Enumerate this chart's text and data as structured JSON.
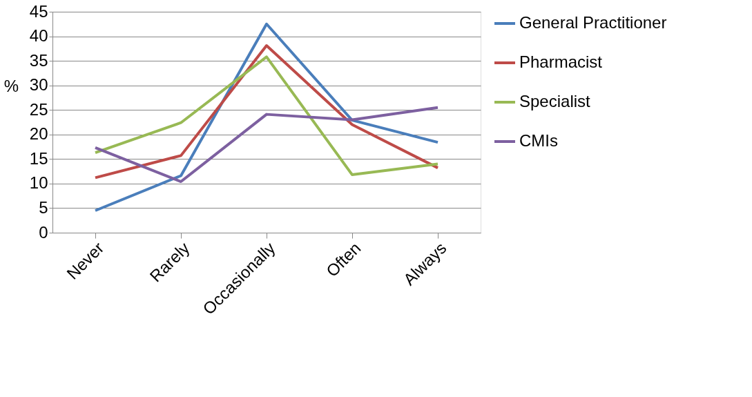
{
  "chart_data": {
    "type": "line",
    "ylabel": "%",
    "categories": [
      "Never",
      "Rarely",
      "Occasionally",
      "Often",
      "Always"
    ],
    "series": [
      {
        "name": "General Practitioner",
        "color": "#4a7ebb",
        "values": [
          4.5,
          11.6,
          42.5,
          22.9,
          18.4
        ]
      },
      {
        "name": "Pharmacist",
        "color": "#be4b48",
        "values": [
          11.2,
          15.7,
          38.1,
          22.0,
          13.2
        ]
      },
      {
        "name": "Specialist",
        "color": "#98b954",
        "values": [
          16.3,
          22.4,
          35.8,
          11.8,
          14.0
        ]
      },
      {
        "name": "CMIs",
        "color": "#7d60a0",
        "values": [
          17.3,
          10.4,
          24.1,
          23.0,
          25.5
        ]
      }
    ],
    "ylim": [
      0,
      45
    ],
    "yticks": [
      0,
      5,
      10,
      15,
      20,
      25,
      30,
      35,
      40,
      45
    ],
    "grid": "y",
    "legend": "right",
    "marker": "none",
    "line_style": "solid"
  }
}
